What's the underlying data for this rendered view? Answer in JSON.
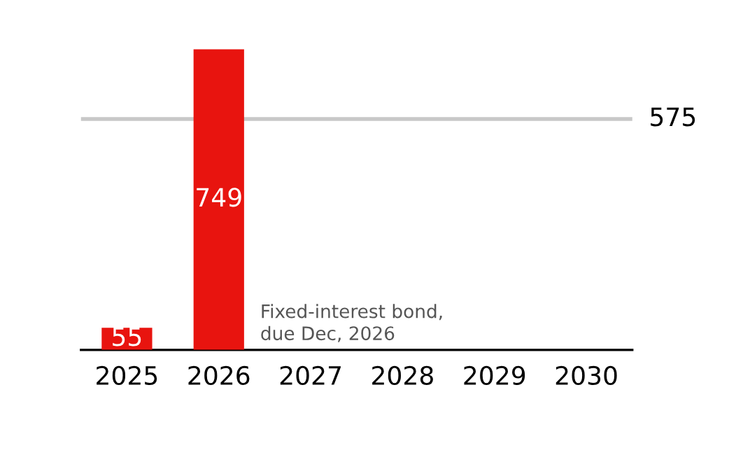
{
  "chart_data": {
    "type": "bar",
    "categories": [
      "2025",
      "2026",
      "2027",
      "2028",
      "2029",
      "2030"
    ],
    "values": [
      55,
      749,
      null,
      null,
      null,
      null
    ],
    "color": "#e8140f",
    "data_labels": true,
    "ref_lines": [
      {
        "axis": "y",
        "value": 575,
        "label": "575",
        "color": "#c8c8c8"
      }
    ],
    "annotations": [
      "Fixed-interest bond,\ndue Dec, 2026"
    ],
    "grid": false,
    "legend": false
  }
}
